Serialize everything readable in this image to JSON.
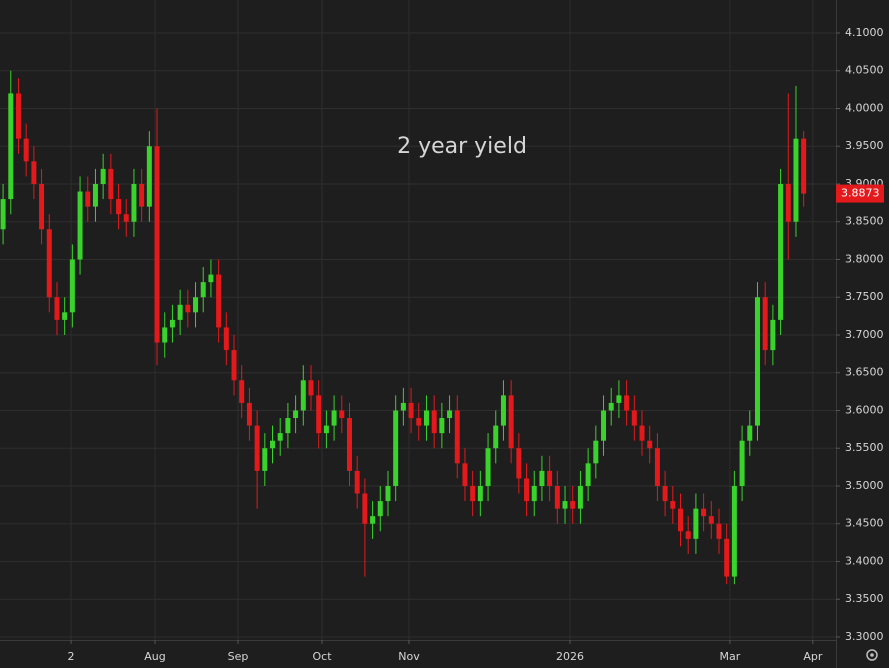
{
  "chart_data": {
    "type": "candlestick",
    "annotation": "2 year yield",
    "up_color": "#39d32b",
    "down_color": "#e4191b",
    "annotation_color": "#e0201f",
    "grid": true,
    "xlim": [
      -0.4,
      108.2
    ],
    "ylim": [
      3.296,
      4.1437
    ],
    "xticks": [
      {
        "value": 8.83,
        "label": "2"
      },
      {
        "value": 19.74,
        "label": "Aug"
      },
      {
        "value": 30.52,
        "label": "Sep"
      },
      {
        "value": 41.43,
        "label": "Oct"
      },
      {
        "value": 52.73,
        "label": "Nov"
      },
      {
        "value": 73.64,
        "label": "2026"
      },
      {
        "value": 94.42,
        "label": "Mar"
      },
      {
        "value": 105.19,
        "label": "Apr"
      }
    ],
    "yticks": [
      {
        "value": 3.3,
        "label": "3.3000"
      },
      {
        "value": 3.35,
        "label": "3.3500"
      },
      {
        "value": 3.4,
        "label": "3.4000"
      },
      {
        "value": 3.45,
        "label": "3.4500"
      },
      {
        "value": 3.5,
        "label": "3.5000"
      },
      {
        "value": 3.55,
        "label": "3.5500"
      },
      {
        "value": 3.6,
        "label": "3.6000"
      },
      {
        "value": 3.65,
        "label": "3.6500"
      },
      {
        "value": 3.7,
        "label": "3.7000"
      },
      {
        "value": 3.75,
        "label": "3.7500"
      },
      {
        "value": 3.8,
        "label": "3.8000"
      },
      {
        "value": 3.85,
        "label": "3.8500"
      },
      {
        "value": 3.9,
        "label": "3.9000"
      },
      {
        "value": 3.95,
        "label": "3.9500"
      },
      {
        "value": 4.0,
        "label": "4.0000"
      },
      {
        "value": 4.05,
        "label": "4.0500"
      },
      {
        "value": 4.1,
        "label": "4.1000"
      }
    ],
    "open": [
      3.84,
      3.88,
      4.02,
      3.96,
      3.93,
      3.9,
      3.84,
      3.75,
      3.72,
      3.73,
      3.8,
      3.89,
      3.87,
      3.9,
      3.92,
      3.88,
      3.86,
      3.85,
      3.9,
      3.87,
      3.95,
      3.69,
      3.71,
      3.72,
      3.74,
      3.73,
      3.75,
      3.77,
      3.78,
      3.71,
      3.68,
      3.64,
      3.61,
      3.58,
      3.52,
      3.55,
      3.56,
      3.57,
      3.59,
      3.6,
      3.64,
      3.62,
      3.57,
      3.58,
      3.6,
      3.59,
      3.52,
      3.49,
      3.45,
      3.46,
      3.48,
      3.5,
      3.6,
      3.61,
      3.59,
      3.58,
      3.6,
      3.57,
      3.59,
      3.6,
      3.53,
      3.5,
      3.48,
      3.5,
      3.55,
      3.58,
      3.62,
      3.55,
      3.51,
      3.48,
      3.5,
      3.52,
      3.5,
      3.47,
      3.48,
      3.47,
      3.5,
      3.53,
      3.56,
      3.6,
      3.61,
      3.62,
      3.6,
      3.58,
      3.56,
      3.55,
      3.5,
      3.48,
      3.47,
      3.44,
      3.43,
      3.47,
      3.46,
      3.45,
      3.43,
      3.38,
      3.5,
      3.56,
      3.58,
      3.75,
      3.68,
      3.72,
      3.9,
      3.85,
      3.96
    ],
    "high": [
      3.9,
      4.05,
      4.04,
      3.98,
      3.95,
      3.92,
      3.86,
      3.77,
      3.75,
      3.82,
      3.91,
      3.91,
      3.92,
      3.94,
      3.94,
      3.9,
      3.88,
      3.92,
      3.92,
      3.97,
      4.0,
      3.73,
      3.74,
      3.76,
      3.76,
      3.77,
      3.79,
      3.8,
      3.8,
      3.73,
      3.7,
      3.66,
      3.63,
      3.6,
      3.57,
      3.58,
      3.59,
      3.61,
      3.62,
      3.66,
      3.66,
      3.64,
      3.6,
      3.62,
      3.62,
      3.61,
      3.54,
      3.51,
      3.48,
      3.5,
      3.52,
      3.62,
      3.63,
      3.63,
      3.61,
      3.62,
      3.62,
      3.61,
      3.62,
      3.62,
      3.55,
      3.52,
      3.52,
      3.57,
      3.6,
      3.64,
      3.64,
      3.57,
      3.53,
      3.52,
      3.54,
      3.54,
      3.52,
      3.5,
      3.5,
      3.52,
      3.55,
      3.58,
      3.62,
      3.63,
      3.64,
      3.64,
      3.62,
      3.6,
      3.58,
      3.57,
      3.52,
      3.5,
      3.49,
      3.46,
      3.49,
      3.49,
      3.48,
      3.47,
      3.45,
      3.52,
      3.58,
      3.6,
      3.77,
      3.77,
      3.74,
      3.92,
      4.02,
      4.03,
      3.97
    ],
    "low": [
      3.82,
      3.86,
      3.94,
      3.91,
      3.88,
      3.82,
      3.73,
      3.7,
      3.7,
      3.71,
      3.78,
      3.85,
      3.85,
      3.88,
      3.86,
      3.84,
      3.83,
      3.83,
      3.85,
      3.85,
      3.66,
      3.67,
      3.69,
      3.7,
      3.71,
      3.71,
      3.73,
      3.75,
      3.69,
      3.66,
      3.62,
      3.59,
      3.56,
      3.47,
      3.5,
      3.53,
      3.54,
      3.55,
      3.57,
      3.58,
      3.6,
      3.55,
      3.55,
      3.56,
      3.57,
      3.5,
      3.47,
      3.38,
      3.43,
      3.44,
      3.46,
      3.48,
      3.58,
      3.57,
      3.56,
      3.56,
      3.55,
      3.55,
      3.57,
      3.51,
      3.48,
      3.46,
      3.46,
      3.48,
      3.53,
      3.56,
      3.53,
      3.49,
      3.46,
      3.46,
      3.48,
      3.48,
      3.45,
      3.45,
      3.45,
      3.45,
      3.48,
      3.51,
      3.54,
      3.58,
      3.59,
      3.58,
      3.56,
      3.54,
      3.53,
      3.48,
      3.46,
      3.45,
      3.42,
      3.41,
      3.41,
      3.44,
      3.43,
      3.41,
      3.37,
      3.37,
      3.48,
      3.54,
      3.56,
      3.66,
      3.66,
      3.7,
      3.8,
      3.83,
      3.87
    ],
    "close": [
      3.88,
      4.02,
      3.96,
      3.93,
      3.9,
      3.84,
      3.75,
      3.72,
      3.73,
      3.8,
      3.89,
      3.87,
      3.9,
      3.92,
      3.88,
      3.86,
      3.85,
      3.9,
      3.87,
      3.95,
      3.69,
      3.71,
      3.72,
      3.74,
      3.73,
      3.75,
      3.77,
      3.78,
      3.71,
      3.68,
      3.64,
      3.61,
      3.58,
      3.52,
      3.55,
      3.56,
      3.57,
      3.59,
      3.6,
      3.64,
      3.62,
      3.57,
      3.58,
      3.6,
      3.59,
      3.52,
      3.49,
      3.45,
      3.46,
      3.48,
      3.5,
      3.6,
      3.61,
      3.59,
      3.58,
      3.6,
      3.57,
      3.59,
      3.6,
      3.53,
      3.5,
      3.48,
      3.5,
      3.55,
      3.58,
      3.62,
      3.55,
      3.51,
      3.48,
      3.5,
      3.52,
      3.5,
      3.47,
      3.48,
      3.47,
      3.5,
      3.53,
      3.56,
      3.6,
      3.61,
      3.62,
      3.6,
      3.58,
      3.56,
      3.55,
      3.5,
      3.48,
      3.47,
      3.44,
      3.43,
      3.47,
      3.46,
      3.45,
      3.43,
      3.38,
      3.5,
      3.56,
      3.58,
      3.75,
      3.68,
      3.72,
      3.9,
      3.85,
      3.96,
      3.8873
    ]
  }
}
